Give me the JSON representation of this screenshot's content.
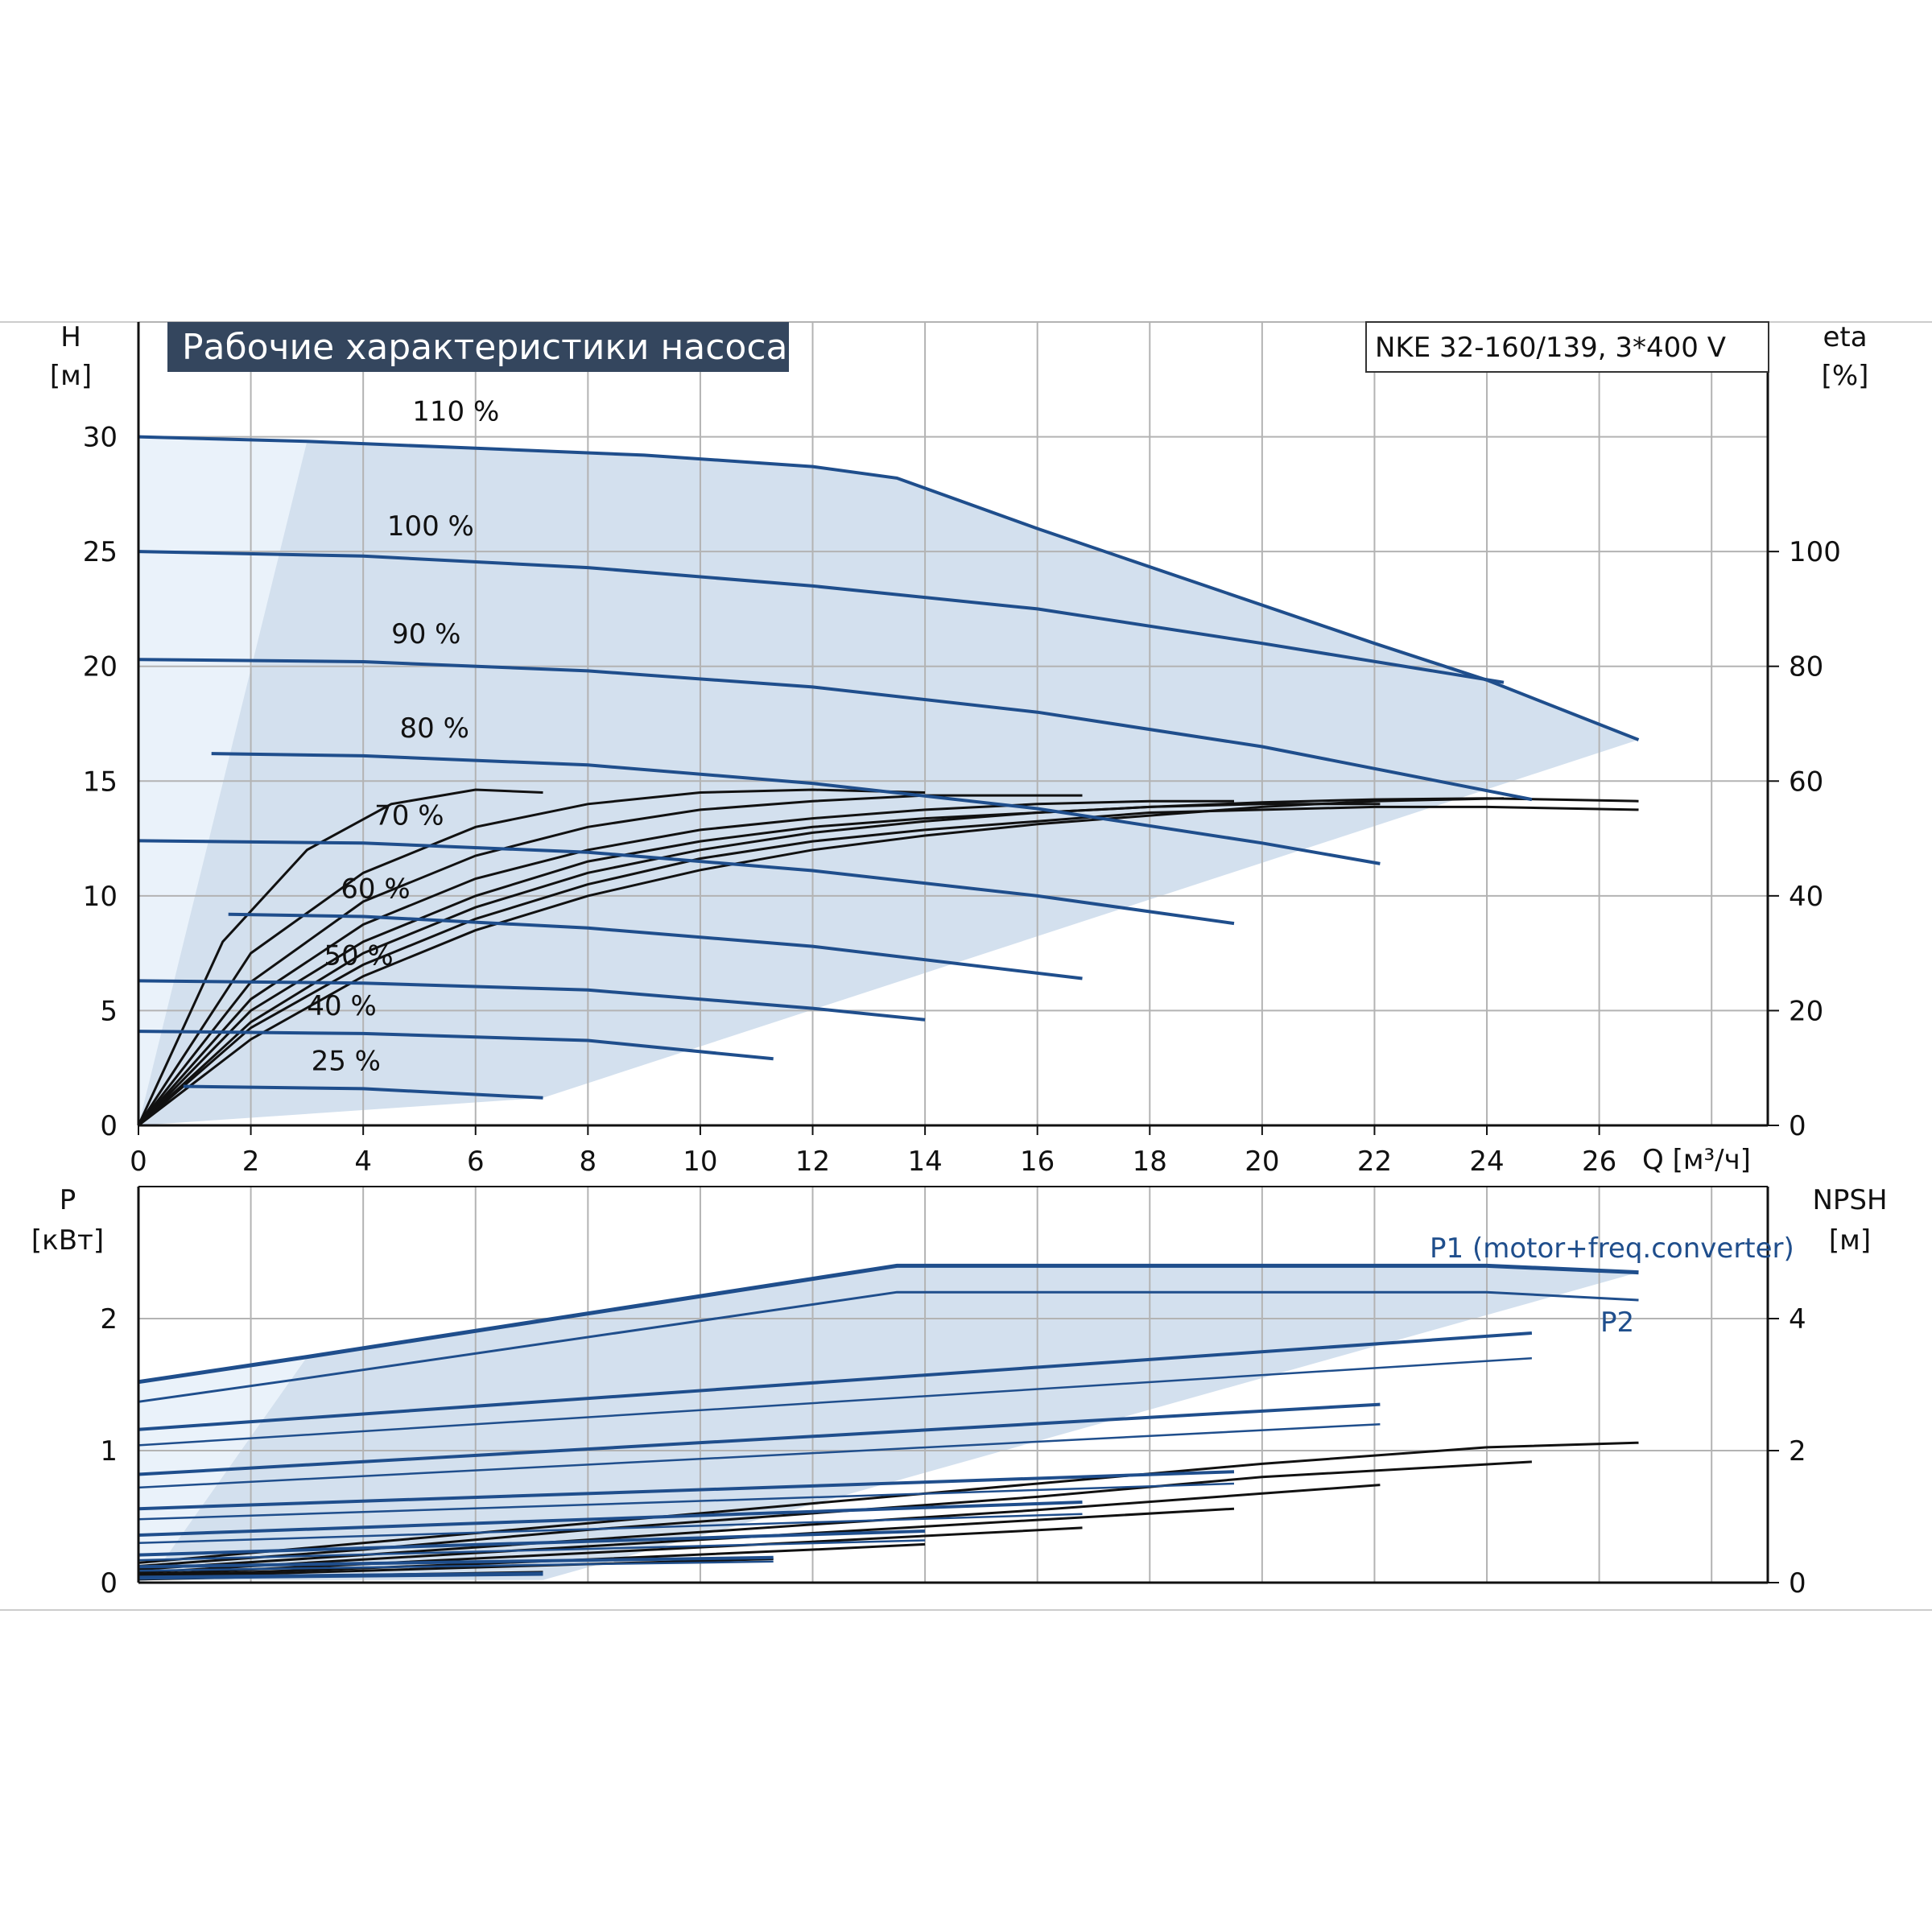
{
  "title": "Рабочие характеристики насоса",
  "model": "NKE 32-160/139, 3*400 V",
  "colors": {
    "curve": "#1f4e8c",
    "fill": "#d3e0ee",
    "fill_light": "#eaf2fa",
    "grid": "#b3b3b3",
    "title_bg": "#34465e",
    "eff": "#111111"
  },
  "chart_data": [
    {
      "type": "line",
      "name": "head",
      "xlabel": "Q [м³/ч]",
      "ylabel_top": "H",
      "ylabel_unit": "[м]",
      "y2label_top": "eta",
      "y2label_unit": "[%]",
      "xlim": [
        0,
        29
      ],
      "ylim": [
        0,
        35
      ],
      "y2lim": [
        0,
        140
      ],
      "xticks": [
        0,
        2,
        4,
        6,
        8,
        10,
        12,
        14,
        16,
        18,
        20,
        22,
        24,
        26
      ],
      "yticks": [
        0,
        5,
        10,
        15,
        20,
        25,
        30
      ],
      "y2ticks": [
        0,
        20,
        40,
        60,
        80,
        100
      ],
      "grid": true,
      "speed_labels": [
        "110 %",
        "100 %",
        "90 %",
        "80 %",
        "70 %",
        "60 %",
        "50 %",
        "40 %",
        "25 %"
      ],
      "series": [
        {
          "name": "110 %",
          "x": [
            0,
            3,
            6,
            9,
            12,
            13.5,
            16,
            19,
            22,
            24,
            26.7
          ],
          "y": [
            30,
            29.8,
            29.5,
            29.2,
            28.7,
            28.2,
            26,
            23.5,
            21,
            19.4,
            16.8
          ]
        },
        {
          "name": "100 %",
          "x": [
            0,
            4,
            8,
            12,
            16,
            20,
            24.3
          ],
          "y": [
            25,
            24.8,
            24.3,
            23.5,
            22.5,
            21,
            19.3
          ]
        },
        {
          "name": "90 %",
          "x": [
            0,
            4,
            8,
            12,
            16,
            20,
            24.8
          ],
          "y": [
            20.3,
            20.2,
            19.8,
            19.1,
            18,
            16.5,
            14.2
          ]
        },
        {
          "name": "80 %",
          "x": [
            1.3,
            4,
            8,
            12,
            16,
            20,
            22.1
          ],
          "y": [
            16.2,
            16.1,
            15.7,
            14.9,
            13.8,
            12.3,
            11.4
          ]
        },
        {
          "name": "70 %",
          "x": [
            0,
            4,
            8,
            12,
            16,
            19.5
          ],
          "y": [
            12.4,
            12.3,
            11.9,
            11.1,
            10,
            8.8
          ]
        },
        {
          "name": "60 %",
          "x": [
            1.6,
            4,
            8,
            12,
            16.8
          ],
          "y": [
            9.2,
            9.1,
            8.6,
            7.8,
            6.4
          ]
        },
        {
          "name": "50 %",
          "x": [
            0,
            4,
            8,
            12,
            14
          ],
          "y": [
            6.3,
            6.2,
            5.9,
            5.1,
            4.6
          ]
        },
        {
          "name": "40 %",
          "x": [
            0,
            4,
            8,
            11.3
          ],
          "y": [
            4.1,
            4,
            3.7,
            2.9
          ]
        },
        {
          "name": "25 %",
          "x": [
            0.8,
            4,
            7.2
          ],
          "y": [
            1.7,
            1.6,
            1.2
          ]
        }
      ],
      "efficiency_series": [
        {
          "x": [
            0,
            2,
            4,
            6,
            8,
            10,
            12,
            14,
            16,
            18,
            20,
            22,
            24,
            26.7
          ],
          "y": [
            0,
            18,
            30,
            38,
            44,
            48,
            51,
            53,
            54.5,
            55.5,
            56.3,
            56.8,
            57,
            56.5
          ]
        },
        {
          "x": [
            0,
            2,
            4,
            6,
            8,
            10,
            12,
            14,
            16,
            18,
            20,
            22,
            24,
            26.7
          ],
          "y": [
            0,
            17,
            28,
            36,
            42,
            46.5,
            49.5,
            51.5,
            53,
            54.5,
            55,
            55.5,
            55.5,
            55
          ]
        },
        {
          "x": [
            0,
            2,
            4,
            6,
            8,
            10,
            12,
            14,
            16,
            18,
            20,
            22,
            24.3
          ],
          "y": [
            0,
            15,
            26,
            34,
            40,
            44.5,
            48,
            50.5,
            52.5,
            54,
            55.5,
            56.5,
            57
          ]
        },
        {
          "x": [
            0,
            2,
            4,
            6,
            8,
            10,
            12,
            14,
            16,
            18,
            20,
            22.1
          ],
          "y": [
            0,
            20,
            32,
            40,
            46,
            49.5,
            52,
            53.5,
            54.5,
            55.5,
            56,
            56
          ]
        },
        {
          "x": [
            0,
            2,
            4,
            6,
            8,
            10,
            12,
            14,
            16,
            18,
            19.5
          ],
          "y": [
            0,
            22,
            35,
            43,
            48,
            51.5,
            53.5,
            55,
            56,
            56.5,
            56.5
          ]
        },
        {
          "x": [
            0,
            2,
            4,
            6,
            8,
            10,
            12,
            14,
            16.8
          ],
          "y": [
            0,
            25,
            39,
            47,
            52,
            55,
            56.5,
            57.5,
            57.5
          ]
        },
        {
          "x": [
            0,
            2,
            4,
            6,
            8,
            10,
            12,
            14
          ],
          "y": [
            0,
            30,
            44,
            52,
            56,
            58,
            58.5,
            58
          ]
        },
        {
          "x": [
            0,
            1.5,
            3,
            4.5,
            6,
            7.2
          ],
          "y": [
            0,
            32,
            48,
            56,
            58.5,
            58
          ]
        }
      ]
    },
    {
      "type": "line",
      "name": "power",
      "xlim": [
        0,
        29
      ],
      "ylim": [
        0,
        3
      ],
      "y2lim": [
        0,
        6
      ],
      "ylabel_top": "P",
      "ylabel_unit": "[кВт]",
      "y2label_top": "NPSH",
      "y2label_unit": "[м]",
      "yticks": [
        0,
        1,
        2
      ],
      "y2ticks": [
        0,
        2,
        4
      ],
      "grid": true,
      "labels": [
        "P1 (motor+freq.converter)",
        "P2"
      ],
      "series": [
        {
          "name": "P1 (motor+freq.converter)",
          "x": [
            0,
            3,
            13.5,
            24,
            26.7
          ],
          "y": [
            1.52,
            1.71,
            2.4,
            2.4,
            2.35
          ]
        },
        {
          "name": "P2",
          "x": [
            0,
            3,
            13.5,
            24,
            26.7
          ],
          "y": [
            1.37,
            1.55,
            2.2,
            2.2,
            2.14
          ]
        }
      ],
      "other_p1": [
        {
          "x": [
            0,
            24.8
          ],
          "y": [
            1.16,
            1.89
          ]
        },
        {
          "x": [
            0,
            22.1
          ],
          "y": [
            0.82,
            1.35
          ]
        },
        {
          "x": [
            0,
            19.5
          ],
          "y": [
            0.56,
            0.84
          ]
        },
        {
          "x": [
            0,
            16.8
          ],
          "y": [
            0.36,
            0.61
          ]
        },
        {
          "x": [
            0,
            14
          ],
          "y": [
            0.21,
            0.39
          ]
        },
        {
          "x": [
            0,
            11.3
          ],
          "y": [
            0.12,
            0.19
          ]
        },
        {
          "x": [
            0,
            7.2
          ],
          "y": [
            0.04,
            0.07
          ]
        }
      ],
      "other_p2": [
        {
          "x": [
            0,
            24.8
          ],
          "y": [
            1.04,
            1.7
          ]
        },
        {
          "x": [
            0,
            22.1
          ],
          "y": [
            0.72,
            1.2
          ]
        },
        {
          "x": [
            0,
            19.5
          ],
          "y": [
            0.48,
            0.75
          ]
        },
        {
          "x": [
            0,
            16.8
          ],
          "y": [
            0.3,
            0.52
          ]
        },
        {
          "x": [
            0,
            14
          ],
          "y": [
            0.17,
            0.32
          ]
        },
        {
          "x": [
            0,
            11.3
          ],
          "y": [
            0.09,
            0.16
          ]
        },
        {
          "x": [
            0,
            7.2
          ],
          "y": [
            0.03,
            0.06
          ]
        }
      ],
      "npsh_series": [
        {
          "x": [
            0,
            4,
            8,
            12,
            16,
            20,
            24,
            26.7
          ],
          "y": [
            0.3,
            0.6,
            0.9,
            1.2,
            1.5,
            1.8,
            2.05,
            2.12
          ]
        },
        {
          "x": [
            0,
            4,
            8,
            12,
            16,
            20,
            24.8
          ],
          "y": [
            0.25,
            0.5,
            0.8,
            1.05,
            1.3,
            1.6,
            1.83
          ]
        },
        {
          "x": [
            0,
            4,
            8,
            12,
            16,
            20,
            22.1
          ],
          "y": [
            0.2,
            0.42,
            0.65,
            0.88,
            1.1,
            1.35,
            1.48
          ]
        },
        {
          "x": [
            0,
            4,
            8,
            12,
            16,
            19.5
          ],
          "y": [
            0.15,
            0.35,
            0.55,
            0.75,
            0.95,
            1.12
          ]
        },
        {
          "x": [
            0,
            4,
            8,
            12,
            16.8
          ],
          "y": [
            0.12,
            0.28,
            0.45,
            0.62,
            0.83
          ]
        },
        {
          "x": [
            0,
            4,
            8,
            12,
            14
          ],
          "y": [
            0.1,
            0.22,
            0.35,
            0.5,
            0.58
          ]
        },
        {
          "x": [
            0,
            4,
            8,
            11.3
          ],
          "y": [
            0.08,
            0.18,
            0.28,
            0.36
          ]
        },
        {
          "x": [
            0,
            3,
            7.2
          ],
          "y": [
            0.05,
            0.1,
            0.16
          ]
        }
      ]
    }
  ]
}
